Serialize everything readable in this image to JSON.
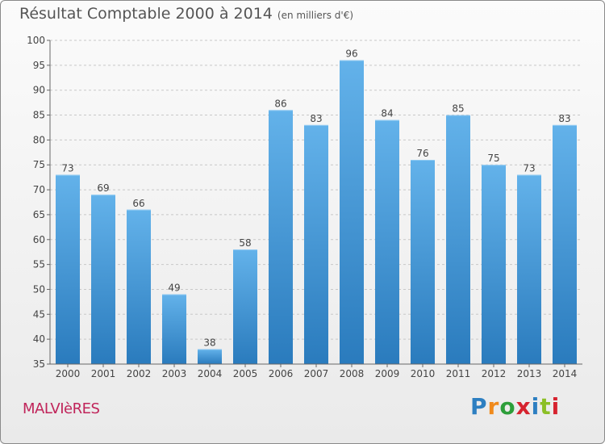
{
  "page": {
    "commune": "MALVIèRES",
    "logo": {
      "text": "Proxiti",
      "letters": [
        "P",
        "r",
        "o",
        "x",
        "i",
        "t",
        "i"
      ],
      "letter_colors": [
        "#2d7fc1",
        "#f08a1c",
        "#2d9e3a",
        "#d6232f",
        "#2d7fc1",
        "#8cbf26",
        "#d6232f"
      ]
    }
  },
  "chart_data": {
    "type": "bar",
    "title": "Résultat Comptable 2000 à 2014",
    "subtitle": "(en milliers d'€)",
    "categories": [
      "2000",
      "2001",
      "2002",
      "2003",
      "2004",
      "2005",
      "2006",
      "2007",
      "2008",
      "2009",
      "2010",
      "2011",
      "2012",
      "2013",
      "2014"
    ],
    "values": [
      73,
      69,
      66,
      49,
      38,
      58,
      86,
      83,
      96,
      84,
      76,
      85,
      75,
      73,
      83
    ],
    "ylim": [
      35,
      100
    ],
    "yticks": [
      35,
      40,
      45,
      50,
      55,
      60,
      65,
      70,
      75,
      80,
      85,
      90,
      95,
      100
    ],
    "xlabel": "",
    "ylabel": "",
    "grid": true,
    "colors": {
      "bar_light": "#63b2ea",
      "bar_dark": "#2a7bbd",
      "grid": "#c8c8c8",
      "axis": "#666666",
      "text": "#444444"
    }
  }
}
